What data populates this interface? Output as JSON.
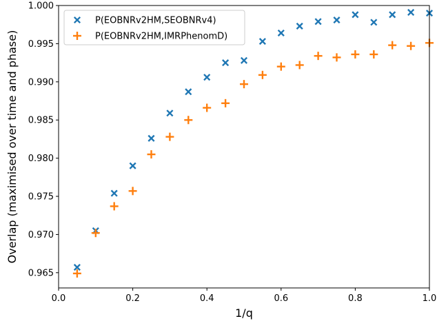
{
  "chart_data": {
    "type": "scatter",
    "xlabel": "1/q",
    "ylabel": "Overlap (maximised over time and phase)",
    "xlim": [
      0.0,
      1.0
    ],
    "ylim": [
      0.963,
      1.0
    ],
    "xticks": [
      "0.0",
      "0.2",
      "0.4",
      "0.6",
      "0.8",
      "1.0"
    ],
    "yticks": [
      "0.965",
      "0.970",
      "0.975",
      "0.980",
      "0.985",
      "0.990",
      "0.995",
      "1.000"
    ],
    "legend_position": "top-left",
    "grid": false,
    "series": [
      {
        "name": "P(EOBNRv2HM,SEOBNRv4)",
        "marker": "x",
        "color": "#1f77b4",
        "x": [
          0.05,
          0.1,
          0.15,
          0.2,
          0.25,
          0.3,
          0.35,
          0.4,
          0.45,
          0.5,
          0.55,
          0.6,
          0.65,
          0.7,
          0.75,
          0.8,
          0.85,
          0.9,
          0.95,
          1.0
        ],
        "y": [
          0.9657,
          0.9705,
          0.9754,
          0.979,
          0.9826,
          0.9859,
          0.9887,
          0.9906,
          0.9925,
          0.9928,
          0.9953,
          0.9964,
          0.9973,
          0.9979,
          0.9981,
          0.9988,
          0.9978,
          0.9988,
          0.9991,
          0.999
        ]
      },
      {
        "name": "P(EOBNRv2HM,IMRPhenomD)",
        "marker": "+",
        "color": "#ff7f0e",
        "x": [
          0.05,
          0.1,
          0.15,
          0.2,
          0.25,
          0.3,
          0.35,
          0.4,
          0.45,
          0.5,
          0.55,
          0.6,
          0.65,
          0.7,
          0.75,
          0.8,
          0.85,
          0.9,
          0.95,
          1.0
        ],
        "y": [
          0.9649,
          0.9702,
          0.9737,
          0.9757,
          0.9805,
          0.9828,
          0.985,
          0.9866,
          0.9872,
          0.9897,
          0.9909,
          0.992,
          0.9922,
          0.9934,
          0.9932,
          0.9936,
          0.9936,
          0.9948,
          0.9947,
          0.9951
        ]
      }
    ]
  }
}
